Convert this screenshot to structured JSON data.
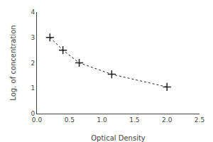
{
  "chart_data": {
    "type": "line",
    "x": [
      0.2,
      0.4,
      0.65,
      1.15,
      2.0
    ],
    "values": [
      3.0,
      2.5,
      2.0,
      1.55,
      1.05
    ],
    "xlabel": "Optical Density",
    "ylabel": "Log. of concentration",
    "xlim": [
      0,
      2.5
    ],
    "ylim": [
      0,
      4
    ],
    "xticks": [
      {
        "value": 0,
        "label": "0.0"
      },
      0.5,
      {
        "value": 1,
        "label": "1.0"
      },
      1.5,
      {
        "value": 2,
        "label": "2.0"
      },
      2.5
    ],
    "yticks": [
      0,
      1,
      2,
      3,
      4
    ],
    "color": "#222222",
    "marker": "cross",
    "line_style": "dotted",
    "grid": false
  }
}
